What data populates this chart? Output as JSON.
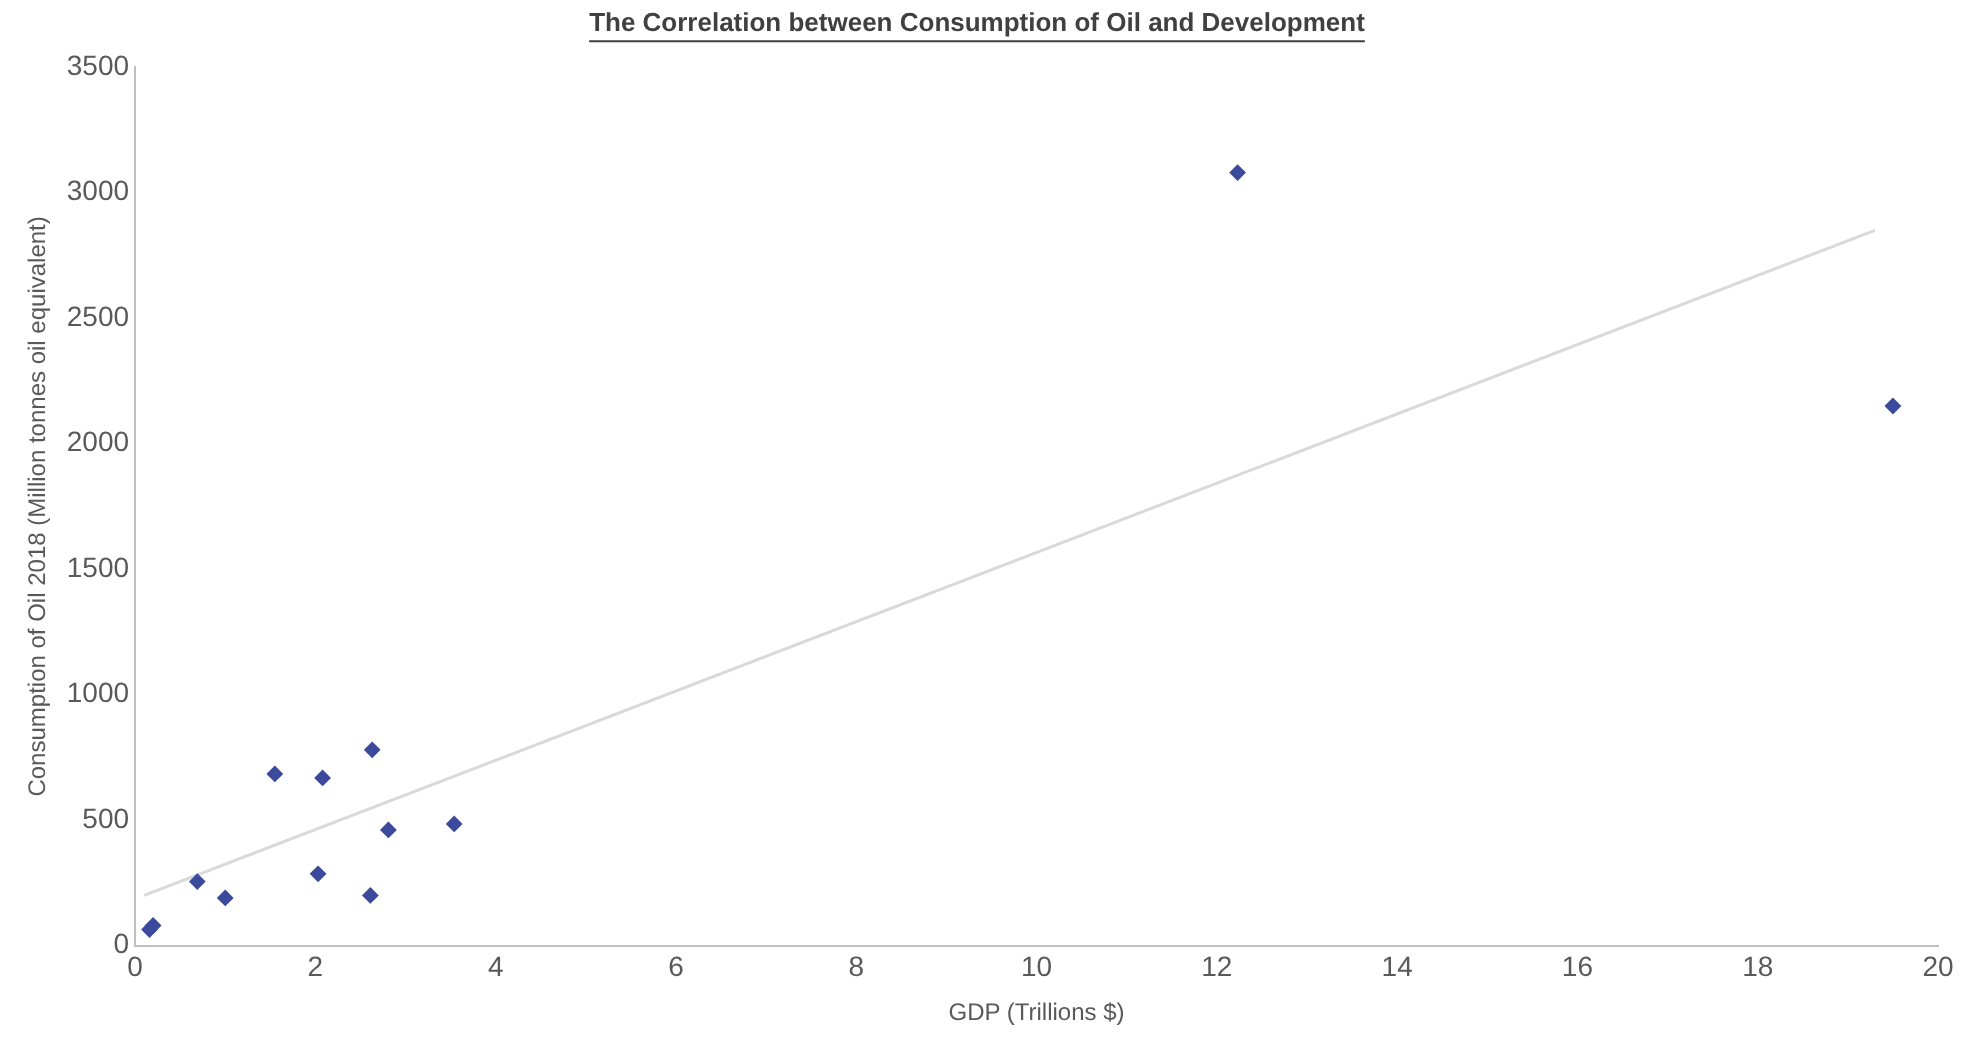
{
  "chart_data": {
    "type": "scatter",
    "title": "The Correlation between Consumption of Oil and Development",
    "xlabel": "GDP (Trillions $)",
    "ylabel": "Consumption of Oil 2018 (Million tonnes oil equivalent)",
    "xlim": [
      0,
      20
    ],
    "xticks": [
      0,
      2,
      4,
      6,
      8,
      10,
      12,
      14,
      16,
      18,
      20
    ],
    "ylim": [
      0,
      3500
    ],
    "yticks": [
      0,
      500,
      1000,
      1500,
      2000,
      2500,
      3000,
      3500
    ],
    "grid": false,
    "legend": false,
    "series": [
      {
        "marker": "diamond",
        "color": "#3b4a9c",
        "x": [
          0.16,
          0.2,
          0.69,
          1.0,
          1.55,
          2.08,
          2.03,
          2.63,
          2.61,
          2.81,
          3.54,
          12.23,
          19.5
        ],
        "values": [
          64,
          80,
          255,
          190,
          684,
          668,
          286,
          780,
          200,
          461,
          485,
          3080,
          2150
        ]
      },
      {
        "type": "line",
        "marker": "none",
        "color": "#d9d9d9",
        "x": [
          0.1,
          19.3
        ],
        "values": [
          200,
          2850
        ]
      }
    ]
  }
}
